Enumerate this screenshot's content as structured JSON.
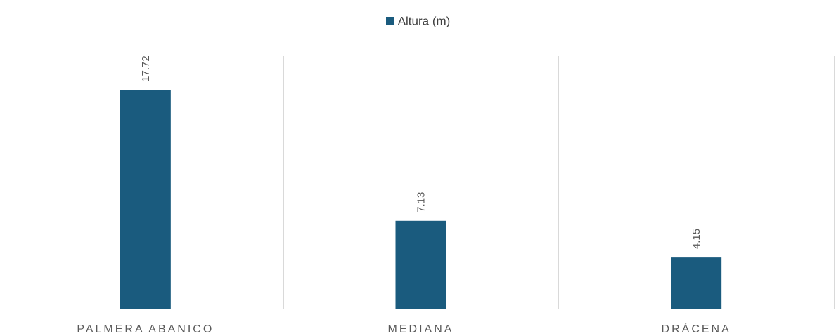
{
  "chart_data": {
    "type": "bar",
    "categories": [
      "PALMERA ABANICO",
      "MEDIANA",
      "DRÁCENA"
    ],
    "series": [
      {
        "name": "Altura (m)",
        "values": [
          17.72,
          7.13,
          4.15
        ],
        "color": "#1a5b7e"
      }
    ],
    "data_labels": [
      "17.72",
      "7.13",
      "4.15"
    ],
    "ylim": [
      0,
      20.5
    ],
    "legend_position": "top",
    "gridlines": "vertical-category-separators",
    "axis_color": "#d9d9d9"
  }
}
